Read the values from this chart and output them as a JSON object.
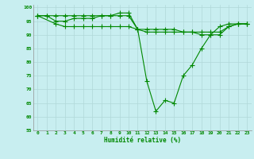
{
  "xlabel": "Humidité relative (%)",
  "background_color": "#c8eef0",
  "grid_color": "#b0d8d8",
  "line_color": "#008800",
  "ylim": [
    55,
    101
  ],
  "xlim": [
    -0.5,
    23.5
  ],
  "yticks": [
    55,
    60,
    65,
    70,
    75,
    80,
    85,
    90,
    95,
    100
  ],
  "xticks": [
    0,
    1,
    2,
    3,
    4,
    5,
    6,
    7,
    8,
    9,
    10,
    11,
    12,
    13,
    14,
    15,
    16,
    17,
    18,
    19,
    20,
    21,
    22,
    23
  ],
  "series1": {
    "x": [
      0,
      1,
      2,
      3,
      4,
      5,
      6,
      7,
      8,
      9,
      10,
      11,
      12,
      13,
      14,
      15,
      16,
      17,
      18,
      19,
      20,
      21,
      22,
      23
    ],
    "y": [
      97,
      97,
      97,
      97,
      97,
      97,
      97,
      97,
      97,
      98,
      98,
      92,
      73,
      62,
      66,
      65,
      75,
      79,
      85,
      90,
      93,
      94,
      94,
      94
    ]
  },
  "series2": {
    "x": [
      0,
      1,
      2,
      3,
      4,
      5,
      6,
      7,
      8,
      9,
      10,
      11,
      12,
      13,
      14,
      15,
      16,
      17,
      18,
      19,
      20,
      21,
      22,
      23
    ],
    "y": [
      97,
      97,
      95,
      95,
      96,
      96,
      96,
      97,
      97,
      97,
      97,
      92,
      92,
      92,
      92,
      92,
      91,
      91,
      91,
      91,
      91,
      93,
      94,
      94
    ]
  },
  "series3": {
    "x": [
      0,
      2,
      3,
      4,
      5,
      6,
      7,
      8,
      9,
      10,
      11,
      12,
      13,
      14,
      15,
      16,
      17,
      18,
      19,
      20,
      21,
      22,
      23
    ],
    "y": [
      97,
      94,
      93,
      93,
      93,
      93,
      93,
      93,
      93,
      93,
      92,
      91,
      91,
      91,
      91,
      91,
      91,
      90,
      90,
      90,
      93,
      94,
      94
    ]
  }
}
